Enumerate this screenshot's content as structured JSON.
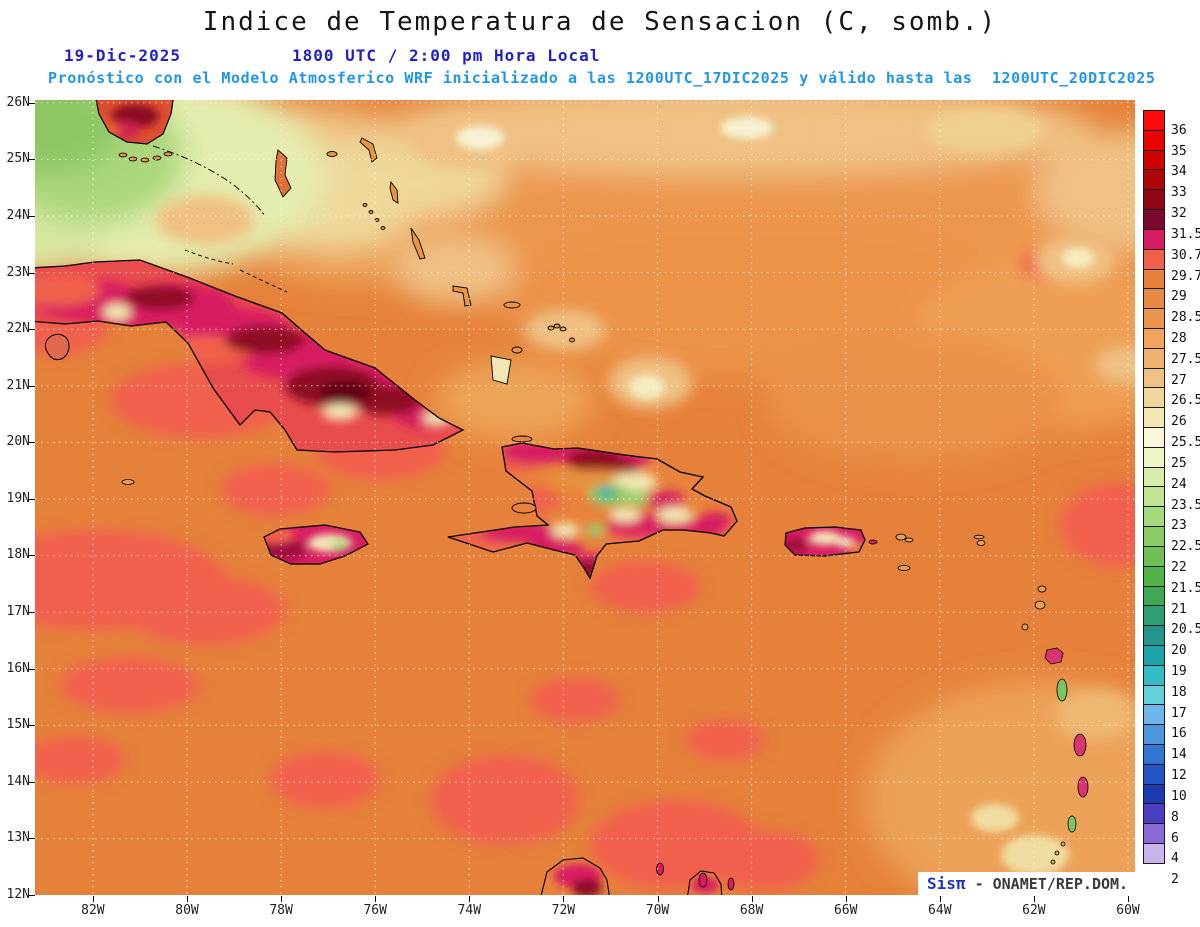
{
  "header": {
    "title": "Indice de Temperatura de Sensacion (C, somb.)",
    "date": "19-Dic-2025",
    "time": "1800 UTC / 2:00 pm Hora Local",
    "forecast": "Pronóstico con el Modelo Atmosferico WRF inicializado a las 1200UTC_17DIC2025 y válido hasta las  1200UTC_20DIC2025"
  },
  "map": {
    "lat_ticks": [
      "26N",
      "25N",
      "24N",
      "23N",
      "22N",
      "21N",
      "20N",
      "19N",
      "18N",
      "17N",
      "16N",
      "15N",
      "14N",
      "13N",
      "12N"
    ],
    "lon_ticks": [
      "82W",
      "80W",
      "78W",
      "76W",
      "74W",
      "72W",
      "70W",
      "68W",
      "66W",
      "64W",
      "62W",
      "60W"
    ]
  },
  "colorbar": {
    "labels": [
      "36",
      "35",
      "34",
      "33",
      "32",
      "31.5",
      "30.7",
      "29.7",
      "29",
      "28.5",
      "28",
      "27.5",
      "27",
      "26.5",
      "26",
      "25.5",
      "25",
      "24",
      "23.5",
      "23",
      "22.5",
      "22",
      "21.5",
      "21",
      "20.5",
      "20",
      "19",
      "18",
      "17",
      "16",
      "14",
      "12",
      "10",
      "8",
      "6",
      "4",
      "2"
    ],
    "colors": [
      "#fa0a0a",
      "#e80202",
      "#cf0000",
      "#ad0707",
      "#8f0713",
      "#7a0a2e",
      "#d81e62",
      "#f1604d",
      "#e5813a",
      "#e98a42",
      "#ec964d",
      "#efa55c",
      "#f0b26c",
      "#efc284",
      "#f0d79b",
      "#f5e7b4",
      "#fbf6d8",
      "#eef5c4",
      "#d9edaa",
      "#c1e392",
      "#a6d87c",
      "#8bcc66",
      "#6fc054",
      "#52b348",
      "#3da955",
      "#2f9f70",
      "#23968b",
      "#1ba3a8",
      "#35bcc4",
      "#63d0dc",
      "#6db6ea",
      "#4a94e0",
      "#3374d4",
      "#2356c4",
      "#1c3bb0",
      "#4a3ec0",
      "#8a6ad8",
      "#c9b4ec"
    ]
  },
  "credit": {
    "brand": "Sisπ",
    "suffix": "- ONAMET/REP.DOM."
  }
}
